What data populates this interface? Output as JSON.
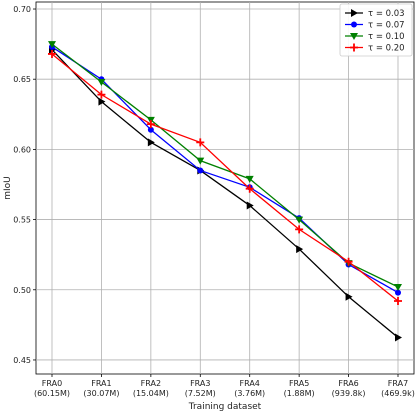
{
  "chart_data": {
    "type": "line",
    "xlabel": "Training dataset",
    "ylabel": "mIoU",
    "categories": [
      [
        "FRA0",
        "(60.15M)"
      ],
      [
        "FRA1",
        "(30.07M)"
      ],
      [
        "FRA2",
        "(15.04M)"
      ],
      [
        "FRA3",
        "(7.52M)"
      ],
      [
        "FRA4",
        "(3.76M)"
      ],
      [
        "FRA5",
        "(1.88M)"
      ],
      [
        "FRA6",
        "(939.8k)"
      ],
      [
        "FRA7",
        "(469.9k)"
      ]
    ],
    "ylim": [
      0.44,
      0.705
    ],
    "yticks": [
      "0.45",
      "0.50",
      "0.55",
      "0.60",
      "0.65",
      "0.70"
    ],
    "grid": true,
    "legend": "top-right",
    "series": [
      {
        "name": "τ = 0.03",
        "color": "#000000",
        "marker": "triangle-right",
        "values": [
          0.671,
          0.634,
          0.605,
          0.585,
          0.56,
          0.529,
          0.495,
          0.466
        ]
      },
      {
        "name": "τ = 0.07",
        "color": "#0000ff",
        "marker": "circle",
        "values": [
          0.673,
          0.65,
          0.614,
          0.585,
          0.573,
          0.551,
          0.518,
          0.498
        ]
      },
      {
        "name": "τ = 0.10",
        "color": "#008000",
        "marker": "triangle-down",
        "values": [
          0.675,
          0.648,
          0.621,
          0.592,
          0.579,
          0.55,
          0.519,
          0.502
        ]
      },
      {
        "name": "τ = 0.20",
        "color": "#ff0000",
        "marker": "plus",
        "values": [
          0.668,
          0.639,
          0.618,
          0.605,
          0.572,
          0.543,
          0.52,
          0.492
        ]
      }
    ]
  }
}
